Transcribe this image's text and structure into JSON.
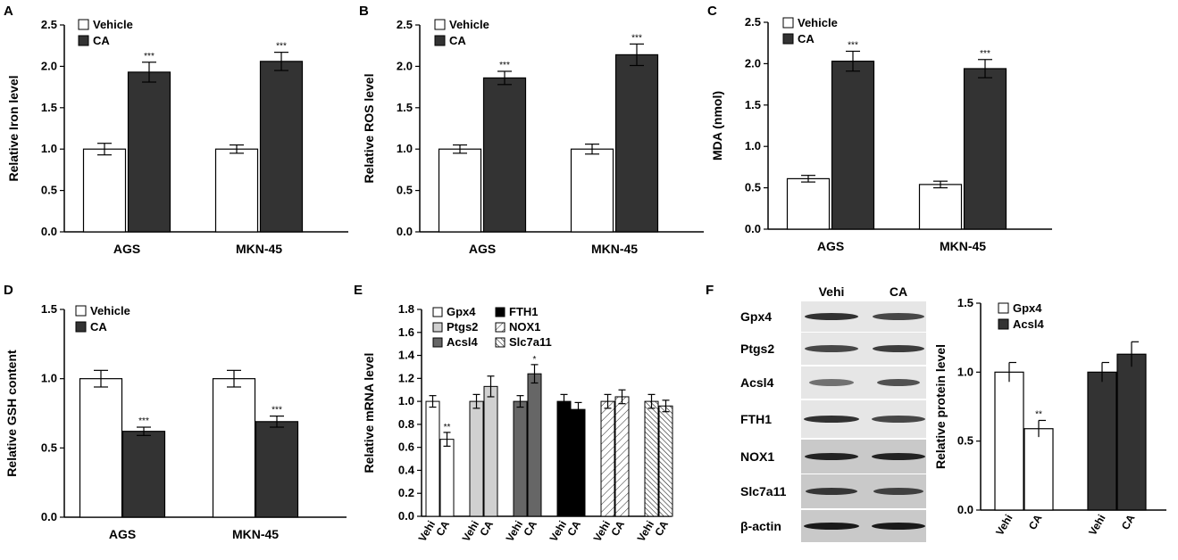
{
  "chart_data": [
    {
      "type": "bar",
      "panel": "A",
      "ylabel": "Relative Iron level",
      "ylim": [
        0,
        2.5
      ],
      "yticks": [
        "0.0",
        "0.5",
        "1.0",
        "1.5",
        "2.0",
        "2.5"
      ],
      "categories": [
        "AGS",
        "MKN-45"
      ],
      "series": [
        {
          "name": "Vehicle",
          "values": [
            1.0,
            1.0
          ],
          "errors": [
            0.07,
            0.05
          ],
          "color": "#ffffff"
        },
        {
          "name": "CA",
          "values": [
            1.93,
            2.06
          ],
          "errors": [
            0.12,
            0.11
          ],
          "color": "#333333"
        }
      ],
      "annotations": [
        "***",
        "***"
      ],
      "legend": "top-left"
    },
    {
      "type": "bar",
      "panel": "B",
      "ylabel": "Relative ROS level",
      "ylim": [
        0,
        2.5
      ],
      "yticks": [
        "0.0",
        "0.5",
        "1.0",
        "1.5",
        "2.0",
        "2.5"
      ],
      "categories": [
        "AGS",
        "MKN-45"
      ],
      "series": [
        {
          "name": "Vehicle",
          "values": [
            1.0,
            1.0
          ],
          "errors": [
            0.05,
            0.06
          ],
          "color": "#ffffff"
        },
        {
          "name": "CA",
          "values": [
            1.86,
            2.14
          ],
          "errors": [
            0.08,
            0.13
          ],
          "color": "#333333"
        }
      ],
      "annotations": [
        "***",
        "***"
      ],
      "legend": "top-left"
    },
    {
      "type": "bar",
      "panel": "C",
      "ylabel": "MDA (nmol)",
      "ylim": [
        0,
        2.5
      ],
      "yticks": [
        "0.0",
        "0.5",
        "1.0",
        "1.5",
        "2.0",
        "2.5"
      ],
      "categories": [
        "AGS",
        "MKN-45"
      ],
      "series": [
        {
          "name": "Vehicle",
          "values": [
            0.61,
            0.54
          ],
          "errors": [
            0.04,
            0.04
          ],
          "color": "#ffffff"
        },
        {
          "name": "CA",
          "values": [
            2.03,
            1.94
          ],
          "errors": [
            0.12,
            0.11
          ],
          "color": "#333333"
        }
      ],
      "annotations": [
        "***",
        "***"
      ],
      "legend": "top-left"
    },
    {
      "type": "bar",
      "panel": "D",
      "ylabel": "Relative GSH content",
      "ylim": [
        0,
        1.5
      ],
      "yticks": [
        "0.0",
        "0.5",
        "1.0",
        "1.5"
      ],
      "categories": [
        "AGS",
        "MKN-45"
      ],
      "series": [
        {
          "name": "Vehicle",
          "values": [
            1.0,
            1.0
          ],
          "errors": [
            0.06,
            0.06
          ],
          "color": "#ffffff"
        },
        {
          "name": "CA",
          "values": [
            0.62,
            0.69
          ],
          "errors": [
            0.03,
            0.04
          ],
          "color": "#333333"
        }
      ],
      "annotations": [
        "***",
        "***"
      ],
      "legend": "top-left"
    },
    {
      "type": "bar",
      "panel": "E",
      "ylabel": "Relative mRNA level",
      "ylim": [
        0,
        1.8
      ],
      "yticks": [
        "0.0",
        "0.2",
        "0.4",
        "0.6",
        "0.8",
        "1.0",
        "1.2",
        "1.4",
        "1.6",
        "1.8"
      ],
      "bar_labels": [
        "Vehi",
        "CA"
      ],
      "series": [
        {
          "name": "Gpx4",
          "values": [
            1.0,
            0.67
          ],
          "errors": [
            0.05,
            0.06
          ],
          "fill": "#ffffff",
          "annotation": "**"
        },
        {
          "name": "Ptgs2",
          "values": [
            1.0,
            1.13
          ],
          "errors": [
            0.06,
            0.09
          ],
          "fill": "#d0d0d0",
          "annotation": ""
        },
        {
          "name": "Acsl4",
          "values": [
            1.0,
            1.24
          ],
          "errors": [
            0.05,
            0.08
          ],
          "fill": "#666666",
          "annotation": "*"
        },
        {
          "name": "FTH1",
          "values": [
            1.0,
            0.93
          ],
          "errors": [
            0.06,
            0.06
          ],
          "fill": "#000000",
          "annotation": ""
        },
        {
          "name": "NOX1",
          "values": [
            1.0,
            1.04
          ],
          "errors": [
            0.06,
            0.06
          ],
          "fill": "hatch-light",
          "annotation": ""
        },
        {
          "name": "Slc7a11",
          "values": [
            1.0,
            0.96
          ],
          "errors": [
            0.06,
            0.05
          ],
          "fill": "hatch-dense",
          "annotation": ""
        }
      ],
      "legend": "top-left"
    },
    {
      "type": "bar",
      "panel": "F",
      "ylabel": "Relative protein level",
      "ylim": [
        0,
        1.5
      ],
      "yticks": [
        "0.0",
        "0.5",
        "1.0",
        "1.5"
      ],
      "bar_labels": [
        "Vehi",
        "CA"
      ],
      "series": [
        {
          "name": "Gpx4",
          "values": [
            1.0,
            0.59
          ],
          "errors": [
            0.07,
            0.06
          ],
          "color": "#ffffff",
          "annotation": "**"
        },
        {
          "name": "Acsl4",
          "values": [
            1.0,
            1.13
          ],
          "errors": [
            0.07,
            0.09
          ],
          "color": "#333333",
          "annotation": ""
        }
      ],
      "legend": "top-left",
      "blot": {
        "columns": [
          "Vehi",
          "CA"
        ],
        "rows": [
          "Gpx4",
          "Ptgs2",
          "Acsl4",
          "FTH1",
          "NOX1",
          "Slc7a11",
          "β-actin"
        ]
      }
    }
  ]
}
